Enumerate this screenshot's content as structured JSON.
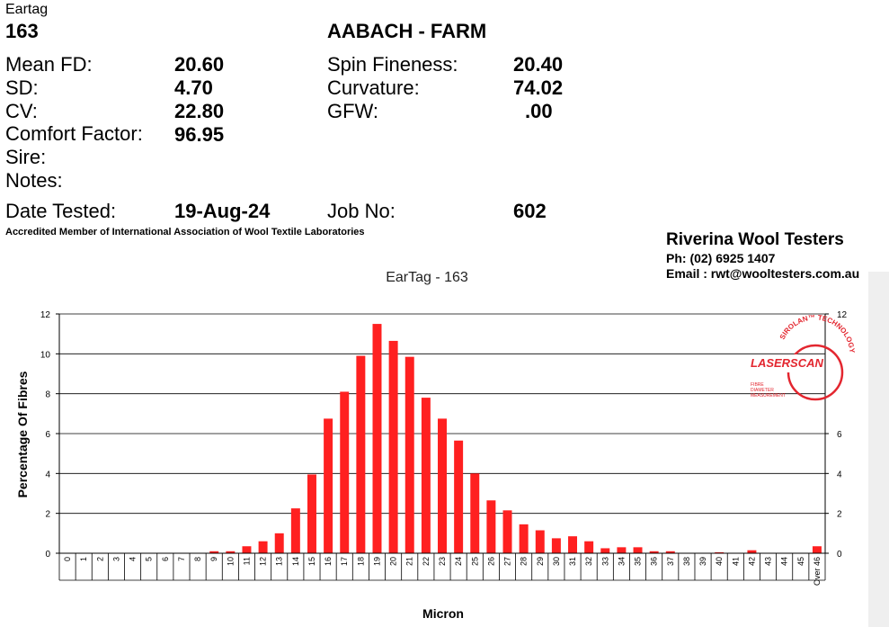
{
  "header": {
    "eartag_label": "Eartag",
    "eartag_value": "163",
    "farm": "AABACH - FARM",
    "stats_left": [
      {
        "label": "Mean FD:",
        "value": "20.60"
      },
      {
        "label": "SD:",
        "value": "4.70"
      },
      {
        "label": "CV:",
        "value": "22.80"
      },
      {
        "label": "Comfort Factor:",
        "value": "96.95"
      },
      {
        "label": "Sire:",
        "value": ""
      },
      {
        "label": "Notes:",
        "value": ""
      }
    ],
    "stats_right": [
      {
        "label": "Spin Fineness:",
        "value": "20.40"
      },
      {
        "label": "Curvature:",
        "value": "74.02"
      },
      {
        "label": "GFW:",
        "value": ".00"
      }
    ],
    "date_label": "Date Tested:",
    "date_value": "19-Aug-24",
    "job_label": "Job No:",
    "job_value": "602",
    "accreditation": "Accredited Member of International Association of Wool Textile Laboratories"
  },
  "company": {
    "name": "Riverina Wool Testers",
    "phone": "Ph: (02) 6925 1407",
    "email": "Email : rwt@wooltesters.com.au"
  },
  "logo": {
    "brand": "LASERSCAN",
    "arc_text": "SIROLAN™ TECHNOLOGY",
    "sub_lines": [
      "FIBRE",
      "DIAMETER",
      "MEASUREMENT"
    ]
  },
  "chart_data": {
    "type": "bar",
    "title": "EarTag - 163",
    "xlabel": "Micron",
    "ylabel": "Percentage Of Fibres",
    "ylim": [
      0,
      12
    ],
    "yticks": [
      0,
      2,
      4,
      6,
      8,
      10,
      12
    ],
    "right_yticks": [
      0,
      2,
      4,
      6,
      12
    ],
    "grid": true,
    "bar_color": "#ff2020",
    "categories": [
      "0",
      "1",
      "2",
      "3",
      "4",
      "5",
      "6",
      "7",
      "8",
      "9",
      "10",
      "11",
      "12",
      "13",
      "14",
      "15",
      "16",
      "17",
      "18",
      "19",
      "20",
      "21",
      "22",
      "23",
      "24",
      "25",
      "26",
      "27",
      "28",
      "29",
      "30",
      "31",
      "32",
      "33",
      "34",
      "35",
      "36",
      "37",
      "38",
      "39",
      "40",
      "41",
      "42",
      "43",
      "44",
      "45",
      "Over 46"
    ],
    "values": [
      0,
      0,
      0,
      0,
      0,
      0,
      0,
      0,
      0,
      0.1,
      0.1,
      0.35,
      0.6,
      1.0,
      2.25,
      3.95,
      6.75,
      8.1,
      9.9,
      11.5,
      10.65,
      9.85,
      7.8,
      6.75,
      5.65,
      4.0,
      2.65,
      2.15,
      1.45,
      1.15,
      0.75,
      0.85,
      0.6,
      0.25,
      0.3,
      0.3,
      0.1,
      0.1,
      0,
      0,
      0.05,
      0,
      0.15,
      0,
      0,
      0,
      0.35
    ]
  }
}
